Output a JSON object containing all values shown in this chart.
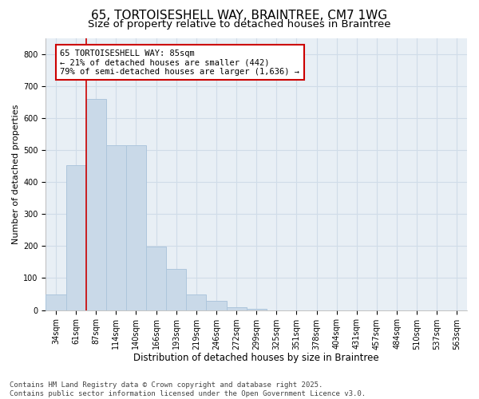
{
  "title_line1": "65, TORTOISESHELL WAY, BRAINTREE, CM7 1WG",
  "title_line2": "Size of property relative to detached houses in Braintree",
  "xlabel": "Distribution of detached houses by size in Braintree",
  "ylabel": "Number of detached properties",
  "bar_labels": [
    "34sqm",
    "61sqm",
    "87sqm",
    "114sqm",
    "140sqm",
    "166sqm",
    "193sqm",
    "219sqm",
    "246sqm",
    "272sqm",
    "299sqm",
    "325sqm",
    "351sqm",
    "378sqm",
    "404sqm",
    "431sqm",
    "457sqm",
    "484sqm",
    "510sqm",
    "537sqm",
    "563sqm"
  ],
  "bar_values": [
    50,
    452,
    660,
    515,
    515,
    198,
    128,
    50,
    28,
    8,
    5,
    0,
    0,
    0,
    0,
    0,
    0,
    0,
    0,
    0,
    0
  ],
  "bar_color": "#c9d9e8",
  "bar_edge_color": "#adc6dc",
  "grid_color": "#d0dce8",
  "background_color": "#e8eff5",
  "vline_color": "#cc0000",
  "annotation_text": "65 TORTOISESHELL WAY: 85sqm\n← 21% of detached houses are smaller (442)\n79% of semi-detached houses are larger (1,636) →",
  "annotation_box_edgecolor": "#cc0000",
  "ylim": [
    0,
    850
  ],
  "yticks": [
    0,
    100,
    200,
    300,
    400,
    500,
    600,
    700,
    800
  ],
  "footer_line1": "Contains HM Land Registry data © Crown copyright and database right 2025.",
  "footer_line2": "Contains public sector information licensed under the Open Government Licence v3.0.",
  "title1_fontsize": 11,
  "title2_fontsize": 9.5,
  "xlabel_fontsize": 8.5,
  "ylabel_fontsize": 8,
  "tick_fontsize": 7,
  "annotation_fontsize": 7.5,
  "footer_fontsize": 6.5
}
